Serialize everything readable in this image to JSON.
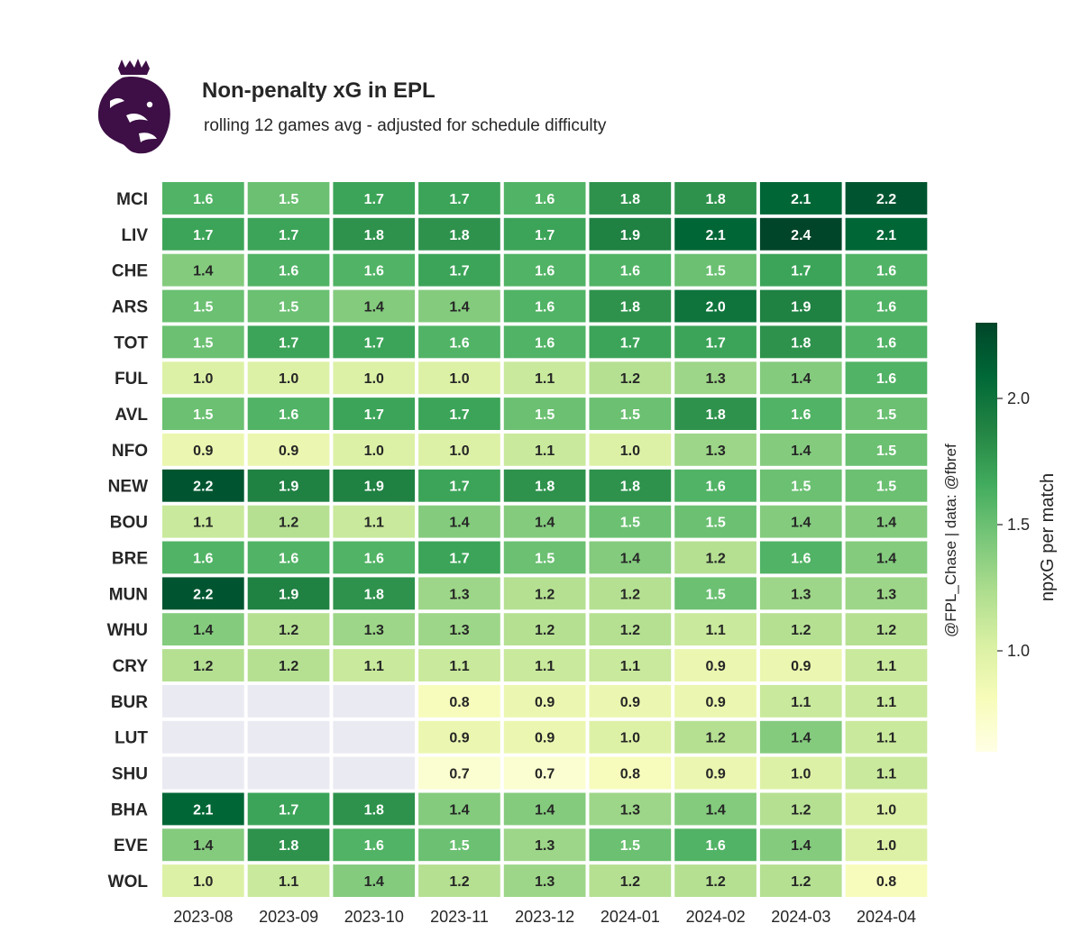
{
  "header": {
    "title": "Non-penalty xG in EPL",
    "subtitle": "rolling 12 games avg - adjusted for schedule difficulty"
  },
  "credit": "@FPL_Chase | data: @fbref",
  "logo_icon": "premier-league-lion-icon",
  "colors": {
    "logo": "#3d0f46",
    "missing": "#eaeaf2"
  },
  "chart_data": {
    "type": "heatmap",
    "title": "Non-penalty xG in EPL",
    "x": [
      "2023-08",
      "2023-09",
      "2023-10",
      "2023-11",
      "2023-12",
      "2024-01",
      "2024-02",
      "2024-03",
      "2024-04"
    ],
    "y": [
      "MCI",
      "LIV",
      "CHE",
      "ARS",
      "TOT",
      "FUL",
      "AVL",
      "NFO",
      "NEW",
      "BOU",
      "BRE",
      "MUN",
      "WHU",
      "CRY",
      "BUR",
      "LUT",
      "SHU",
      "BHA",
      "EVE",
      "WOL"
    ],
    "values": [
      [
        1.6,
        1.5,
        1.7,
        1.7,
        1.6,
        1.8,
        1.8,
        2.1,
        2.2
      ],
      [
        1.7,
        1.7,
        1.8,
        1.8,
        1.7,
        1.9,
        2.1,
        2.4,
        2.1
      ],
      [
        1.4,
        1.6,
        1.6,
        1.7,
        1.6,
        1.6,
        1.5,
        1.7,
        1.6
      ],
      [
        1.5,
        1.5,
        1.4,
        1.4,
        1.6,
        1.8,
        2.0,
        1.9,
        1.6
      ],
      [
        1.5,
        1.7,
        1.7,
        1.6,
        1.6,
        1.7,
        1.7,
        1.8,
        1.6
      ],
      [
        1.0,
        1.0,
        1.0,
        1.0,
        1.1,
        1.2,
        1.3,
        1.4,
        1.6
      ],
      [
        1.5,
        1.6,
        1.7,
        1.7,
        1.5,
        1.5,
        1.8,
        1.6,
        1.5
      ],
      [
        0.9,
        0.9,
        1.0,
        1.0,
        1.1,
        1.0,
        1.3,
        1.4,
        1.5
      ],
      [
        2.2,
        1.9,
        1.9,
        1.7,
        1.8,
        1.8,
        1.6,
        1.5,
        1.5
      ],
      [
        1.1,
        1.2,
        1.1,
        1.4,
        1.4,
        1.5,
        1.5,
        1.4,
        1.4
      ],
      [
        1.6,
        1.6,
        1.6,
        1.7,
        1.5,
        1.4,
        1.2,
        1.6,
        1.4
      ],
      [
        2.2,
        1.9,
        1.8,
        1.3,
        1.2,
        1.2,
        1.5,
        1.3,
        1.3
      ],
      [
        1.4,
        1.2,
        1.3,
        1.3,
        1.2,
        1.2,
        1.1,
        1.2,
        1.2
      ],
      [
        1.2,
        1.2,
        1.1,
        1.1,
        1.1,
        1.1,
        0.9,
        0.9,
        1.1
      ],
      [
        null,
        null,
        null,
        0.8,
        0.9,
        0.9,
        0.9,
        1.1,
        1.1
      ],
      [
        null,
        null,
        null,
        0.9,
        0.9,
        1.0,
        1.2,
        1.4,
        1.1
      ],
      [
        null,
        null,
        null,
        0.7,
        0.7,
        0.8,
        0.9,
        1.0,
        1.1
      ],
      [
        2.1,
        1.7,
        1.8,
        1.4,
        1.4,
        1.3,
        1.4,
        1.2,
        1.0
      ],
      [
        1.4,
        1.8,
        1.6,
        1.5,
        1.3,
        1.5,
        1.6,
        1.4,
        1.0
      ],
      [
        1.0,
        1.1,
        1.4,
        1.2,
        1.3,
        1.2,
        1.2,
        1.2,
        0.8
      ]
    ],
    "colormap": "YlGn",
    "vmin": 0.6,
    "vmax": 2.3,
    "colorbar": {
      "label": "npxG per match",
      "ticks": [
        1.0,
        1.5,
        2.0
      ],
      "tick_labels": [
        "1.0",
        "1.5",
        "2.0"
      ]
    }
  }
}
